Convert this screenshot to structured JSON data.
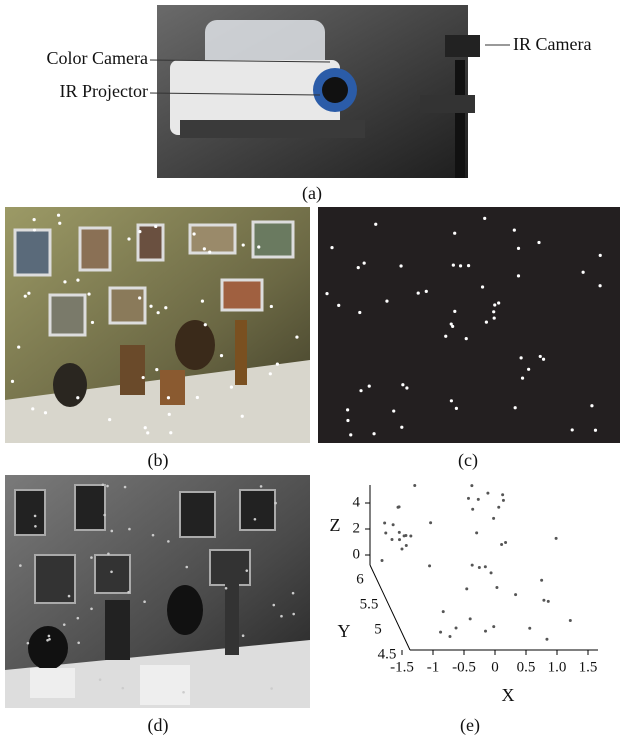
{
  "panels": {
    "a": {
      "caption": "(a)",
      "labels": [
        "Color Camera",
        "IR Projector",
        "IR Camera"
      ]
    },
    "b": {
      "caption": "(b)"
    },
    "c": {
      "caption": "(c)"
    },
    "d": {
      "caption": "(d)"
    },
    "e": {
      "caption": "(e)",
      "axes": {
        "x": {
          "label": "X",
          "ticks": [
            "-1.5",
            "-1",
            "-0.5",
            "0",
            "0.5",
            "1.0",
            "1.5"
          ]
        },
        "y": {
          "label": "Y",
          "ticks": [
            "6",
            "5.5",
            "5",
            "4.5"
          ]
        },
        "z": {
          "label": "Z",
          "ticks": [
            "4",
            "2",
            "0"
          ]
        }
      }
    }
  }
}
